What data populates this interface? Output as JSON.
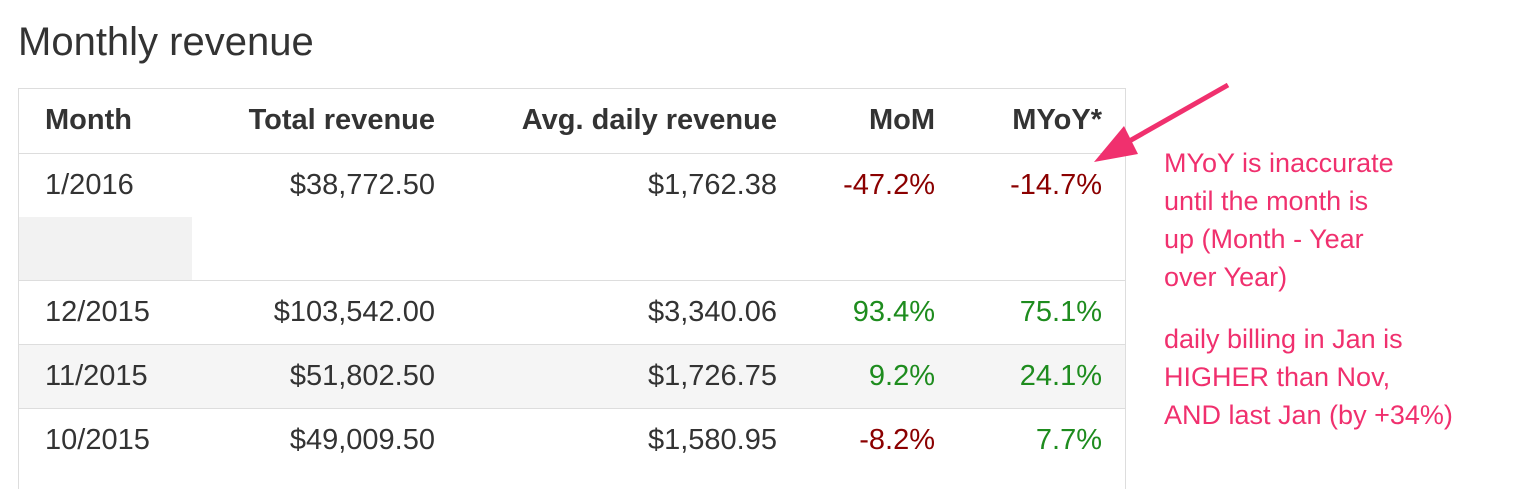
{
  "header": {
    "title": "Monthly revenue"
  },
  "table": {
    "columns": [
      "Month",
      "Total revenue",
      "Avg. daily revenue",
      "MoM",
      "MYoY*"
    ],
    "rows": [
      [
        "1/2016",
        "$38,772.50",
        "$1,762.38",
        "-47.2%",
        "-14.7%"
      ],
      [
        "12/2015",
        "$103,542.00",
        "$3,340.06",
        "93.4%",
        "75.1%"
      ],
      [
        "11/2015",
        "$51,802.50",
        "$1,726.75",
        "9.2%",
        "24.1%"
      ],
      [
        "10/2015",
        "$49,009.50",
        "$1,580.95",
        "-8.2%",
        "7.7%"
      ]
    ],
    "negative_color": "#8b0000",
    "positive_color": "#1e8c1e"
  },
  "annotation": {
    "color": "#f0306e",
    "paragraphs": [
      [
        "MYoY is inaccurate",
        "until the month is",
        "up (Month - Year",
        "over Year)"
      ],
      [
        "daily billing in Jan is",
        "HIGHER than Nov,",
        "AND last Jan (by +34%)"
      ]
    ]
  }
}
